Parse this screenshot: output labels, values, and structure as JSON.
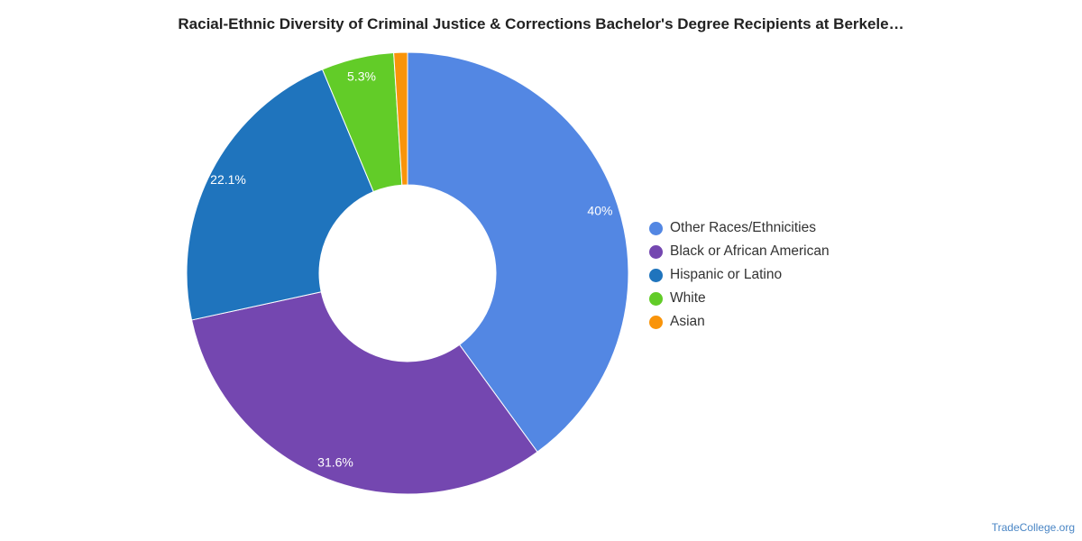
{
  "title": "Racial-Ethnic Diversity of Criminal Justice & Corrections Bachelor's Degree Recipients at Berkele…",
  "credit": "TradeCollege.org",
  "chart_data": {
    "type": "pie",
    "donut": true,
    "legend_position": "right",
    "slices": [
      {
        "label": "Other Races/Ethnicities",
        "value": 40.0,
        "display": "40%",
        "color": "#5387e3"
      },
      {
        "label": "Black or African American",
        "value": 31.6,
        "display": "31.6%",
        "color": "#7447b0"
      },
      {
        "label": "Hispanic or Latino",
        "value": 22.1,
        "display": "22.1%",
        "color": "#1f74bd"
      },
      {
        "label": "White",
        "value": 5.3,
        "display": "5.3%",
        "color": "#62cc28"
      },
      {
        "label": "Asian",
        "value": 1.0,
        "display": "",
        "color": "#f9940a"
      }
    ]
  }
}
